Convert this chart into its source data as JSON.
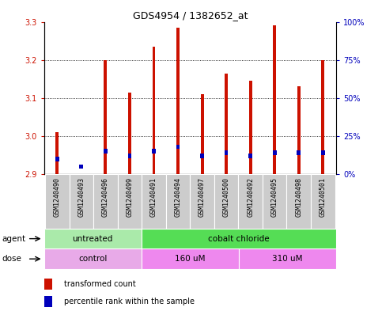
{
  "title": "GDS4954 / 1382652_at",
  "samples": [
    "GSM1240490",
    "GSM1240493",
    "GSM1240496",
    "GSM1240499",
    "GSM1240491",
    "GSM1240494",
    "GSM1240497",
    "GSM1240500",
    "GSM1240492",
    "GSM1240495",
    "GSM1240498",
    "GSM1240501"
  ],
  "red_values": [
    3.01,
    2.9,
    3.2,
    3.115,
    3.235,
    3.285,
    3.11,
    3.165,
    3.145,
    3.29,
    3.13,
    3.2
  ],
  "blue_percentiles": [
    10,
    5,
    15,
    12,
    15,
    18,
    12,
    14,
    12,
    14,
    14,
    14
  ],
  "baseline": 2.9,
  "ylim_left": [
    2.9,
    3.3
  ],
  "ylim_right": [
    0,
    100
  ],
  "yticks_left": [
    2.9,
    3.0,
    3.1,
    3.2,
    3.3
  ],
  "yticks_right": [
    0,
    25,
    50,
    75,
    100
  ],
  "ytick_labels_right": [
    "0%",
    "25%",
    "50%",
    "75%",
    "100%"
  ],
  "agent_groups": [
    {
      "label": "untreated",
      "start": 0,
      "end": 4,
      "color": "#aaeaaa"
    },
    {
      "label": "cobalt chloride",
      "start": 4,
      "end": 12,
      "color": "#55dd55"
    }
  ],
  "dose_groups": [
    {
      "label": "control",
      "start": 0,
      "end": 4,
      "color": "#e8aae8"
    },
    {
      "label": "160 uM",
      "start": 4,
      "end": 8,
      "color": "#ee88ee"
    },
    {
      "label": "310 uM",
      "start": 8,
      "end": 12,
      "color": "#ee88ee"
    }
  ],
  "bar_color_red": "#cc1100",
  "bar_color_blue": "#0000bb",
  "bar_width": 0.13,
  "tick_color_left": "#cc1100",
  "tick_color_right": "#0000bb",
  "grid_color": "black",
  "title_fontsize": 9,
  "sample_label_fontsize": 6,
  "agent_label": "agent",
  "dose_label": "dose",
  "legend_items": [
    "transformed count",
    "percentile rank within the sample"
  ],
  "legend_fontsize": 7
}
